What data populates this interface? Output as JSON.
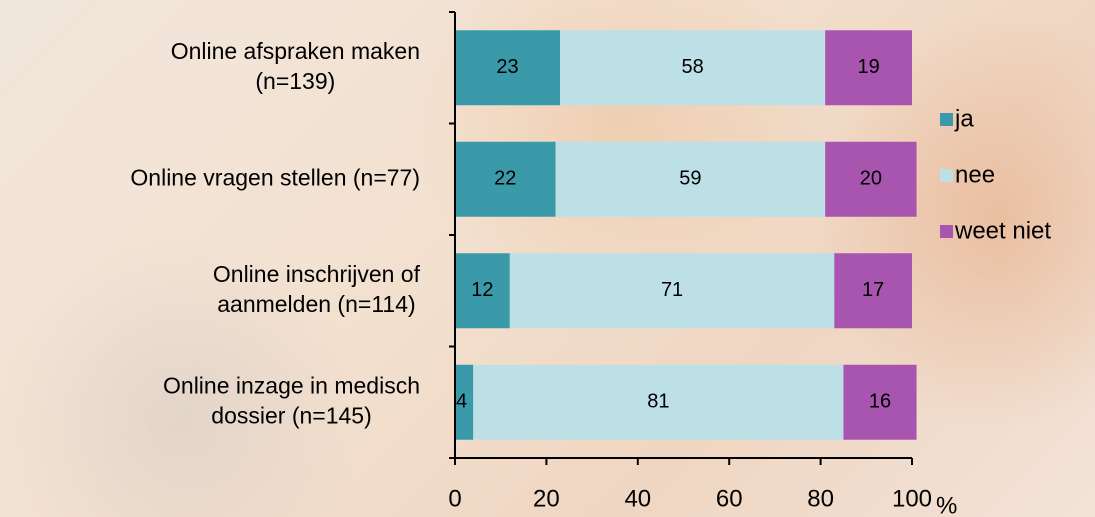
{
  "chart_data": {
    "type": "stacked-barh",
    "categories": [
      "Online afspraken maken\n(n=139)",
      "Online vragen stellen (n=77)",
      "Online inschrijven of\naanmelden (n=114)",
      "Online inzage in medisch\ndossier (n=145)"
    ],
    "series": [
      {
        "name": "ja",
        "color": "#3a9aaa",
        "values": [
          23,
          22,
          12,
          4
        ]
      },
      {
        "name": "nee",
        "color": "#bde0e6",
        "values": [
          58,
          59,
          71,
          81
        ]
      },
      {
        "name": "weet niet",
        "color": "#a855b0",
        "values": [
          19,
          20,
          17,
          16
        ]
      }
    ],
    "xlim": [
      0,
      100
    ],
    "xticks": [
      0,
      20,
      40,
      60,
      80,
      100
    ],
    "xlabel": "%",
    "legend": "right"
  }
}
